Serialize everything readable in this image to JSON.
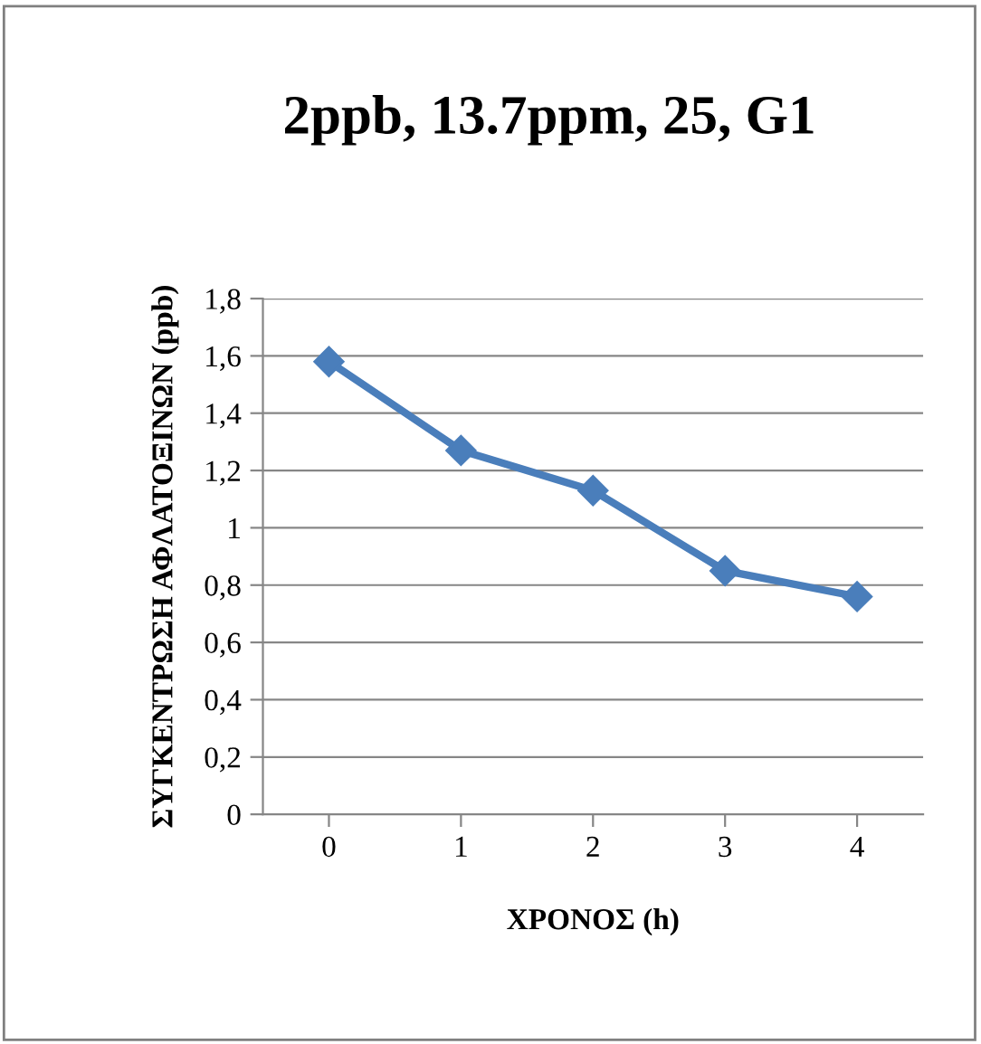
{
  "chart_data": {
    "type": "line",
    "title": "2ppb, 13.7ppm, 25, G1",
    "xlabel": "ΧΡΟΝΟΣ (h)",
    "ylabel": "ΣΥΓΚΕΝΤΡΩΣΗ ΑΦΛΑΤΟΞΙΝΩΝ (ppb)",
    "categories": [
      "0",
      "1",
      "2",
      "3",
      "4"
    ],
    "series": [
      {
        "color": "#4a7ebb",
        "values": [
          1.58,
          1.27,
          1.13,
          0.85,
          0.76
        ]
      }
    ],
    "ylim": [
      0,
      1.8
    ],
    "yticks": [
      0,
      {
        "value": 0.2,
        "label": "0,2"
      },
      {
        "value": 0.4,
        "label": "0,4"
      },
      {
        "value": 0.6,
        "label": "0,6"
      },
      {
        "value": 0.8,
        "label": "0,8"
      },
      1,
      {
        "value": 1.2,
        "label": "1,2"
      },
      {
        "value": 1.4,
        "label": "1,4"
      },
      {
        "value": 1.6,
        "label": "1,6"
      },
      {
        "value": 1.8,
        "label": "1,8"
      }
    ],
    "grid": "y",
    "marker": "diamond",
    "line_style": "solid",
    "legend": false
  }
}
